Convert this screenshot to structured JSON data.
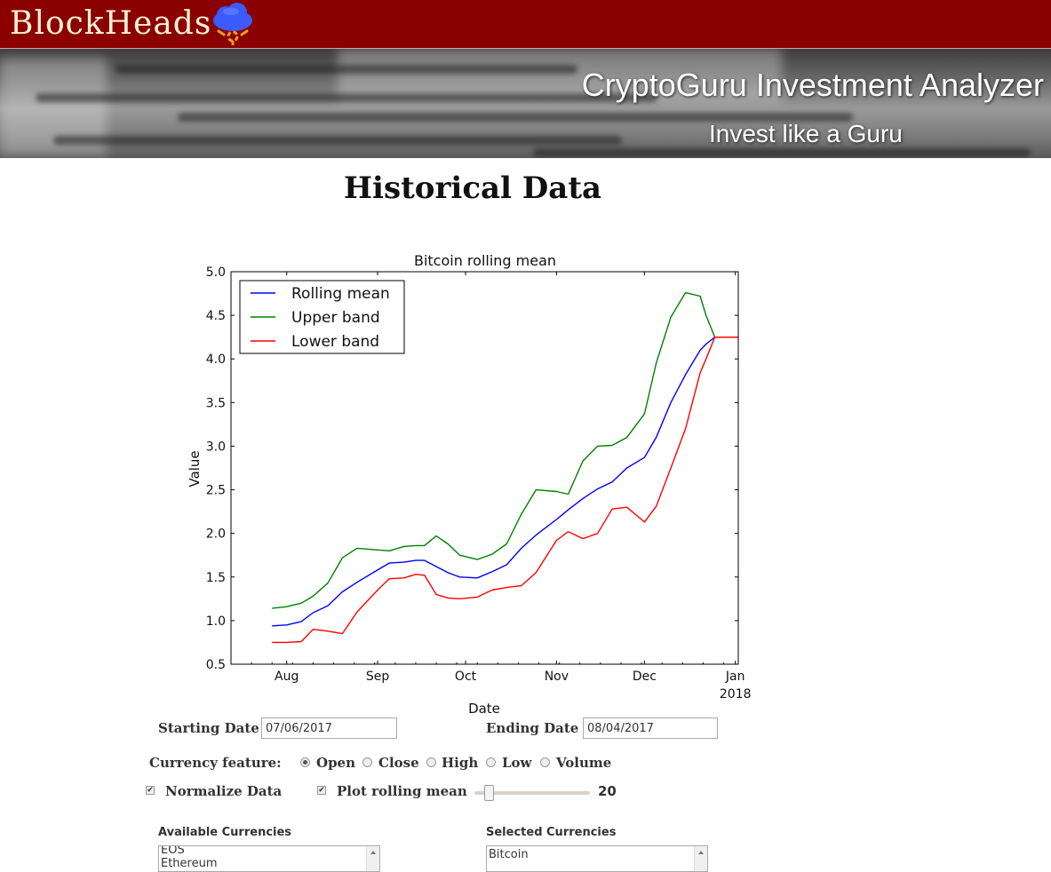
{
  "header": {
    "brand": "BlockHeads",
    "logo_icon": "cloud-bitcoin-icon",
    "bg_color": "#8b0000"
  },
  "hero": {
    "title": "CryptoGuru Investment Analyzer",
    "subtitle": "Invest like a Guru"
  },
  "page_title": "Historical Data",
  "chart_data": {
    "type": "line",
    "title": "Bitcoin rolling mean",
    "xlabel": "Date",
    "ylabel": "Value",
    "ylim": [
      0.5,
      5.0
    ],
    "yticks": [
      0.5,
      1.0,
      1.5,
      2.0,
      2.5,
      3.0,
      3.5,
      4.0,
      4.5,
      5.0
    ],
    "xlim": [
      "2017-07-13",
      "2018-01-02"
    ],
    "xticks": [
      {
        "date": "2017-08-01",
        "label": "Aug"
      },
      {
        "date": "2017-09-01",
        "label": "Sep"
      },
      {
        "date": "2017-10-01",
        "label": "Oct"
      },
      {
        "date": "2017-11-01",
        "label": "Nov"
      },
      {
        "date": "2017-12-01",
        "label": "Dec"
      },
      {
        "date": "2018-01-01",
        "label": "Jan",
        "sublabel": "2018"
      }
    ],
    "legend_position": "top-left",
    "grid": false,
    "x": [
      "2017-07-27",
      "2017-08-01",
      "2017-08-06",
      "2017-08-10",
      "2017-08-15",
      "2017-08-20",
      "2017-08-25",
      "2017-09-01",
      "2017-09-05",
      "2017-09-10",
      "2017-09-14",
      "2017-09-17",
      "2017-09-21",
      "2017-09-25",
      "2017-09-29",
      "2017-10-05",
      "2017-10-10",
      "2017-10-15",
      "2017-10-20",
      "2017-10-25",
      "2017-11-01",
      "2017-11-05",
      "2017-11-10",
      "2017-11-15",
      "2017-11-20",
      "2017-11-25",
      "2017-12-01",
      "2017-12-05",
      "2017-12-10",
      "2017-12-15",
      "2017-12-20",
      "2017-12-22",
      "2017-12-25",
      "2017-12-28",
      "2017-12-31",
      "2018-01-02"
    ],
    "series": [
      {
        "name": "Rolling mean",
        "color": "#0000ff",
        "values": [
          0.94,
          0.95,
          0.99,
          1.09,
          1.17,
          1.33,
          1.44,
          1.58,
          1.66,
          1.67,
          1.69,
          1.69,
          1.62,
          1.55,
          1.5,
          1.49,
          1.56,
          1.64,
          1.83,
          1.98,
          2.16,
          2.27,
          2.4,
          2.51,
          2.59,
          2.75,
          2.87,
          3.1,
          3.5,
          3.82,
          4.1,
          4.17,
          4.25,
          4.25,
          4.25,
          4.25
        ]
      },
      {
        "name": "Upper band",
        "color": "#008000",
        "values": [
          1.14,
          1.16,
          1.2,
          1.28,
          1.43,
          1.72,
          1.83,
          1.81,
          1.8,
          1.85,
          1.86,
          1.86,
          1.97,
          1.88,
          1.75,
          1.7,
          1.76,
          1.88,
          2.22,
          2.5,
          2.48,
          2.45,
          2.83,
          3.0,
          3.01,
          3.1,
          3.37,
          3.95,
          4.48,
          4.76,
          4.72,
          4.5,
          4.25,
          4.25,
          4.25,
          4.25
        ]
      },
      {
        "name": "Lower band",
        "color": "#ff0000",
        "values": [
          0.75,
          0.75,
          0.76,
          0.9,
          0.88,
          0.85,
          1.1,
          1.35,
          1.48,
          1.49,
          1.53,
          1.52,
          1.3,
          1.26,
          1.25,
          1.27,
          1.35,
          1.38,
          1.4,
          1.55,
          1.92,
          2.02,
          1.94,
          2.0,
          2.28,
          2.3,
          2.13,
          2.31,
          2.75,
          3.2,
          3.84,
          4.0,
          4.25,
          4.25,
          4.25,
          4.25
        ]
      }
    ]
  },
  "controls": {
    "start_label": "Starting Date",
    "start_value": "07/06/2017",
    "end_label": "Ending Date",
    "end_value": "08/04/2017",
    "feature_label": "Currency feature:",
    "features": [
      "Open",
      "Close",
      "High",
      "Low",
      "Volume"
    ],
    "feature_selected": "Open",
    "normalize_label": "Normalize Data",
    "normalize_checked": true,
    "rolling_label": "Plot rolling mean",
    "rolling_checked": true,
    "window_value": "20",
    "window_fraction": 0.12
  },
  "currencies": {
    "available_label": "Available Currencies",
    "available": [
      "EOS",
      "Ethereum"
    ],
    "selected_label": "Selected Currencies",
    "selected": [
      "Bitcoin"
    ]
  }
}
